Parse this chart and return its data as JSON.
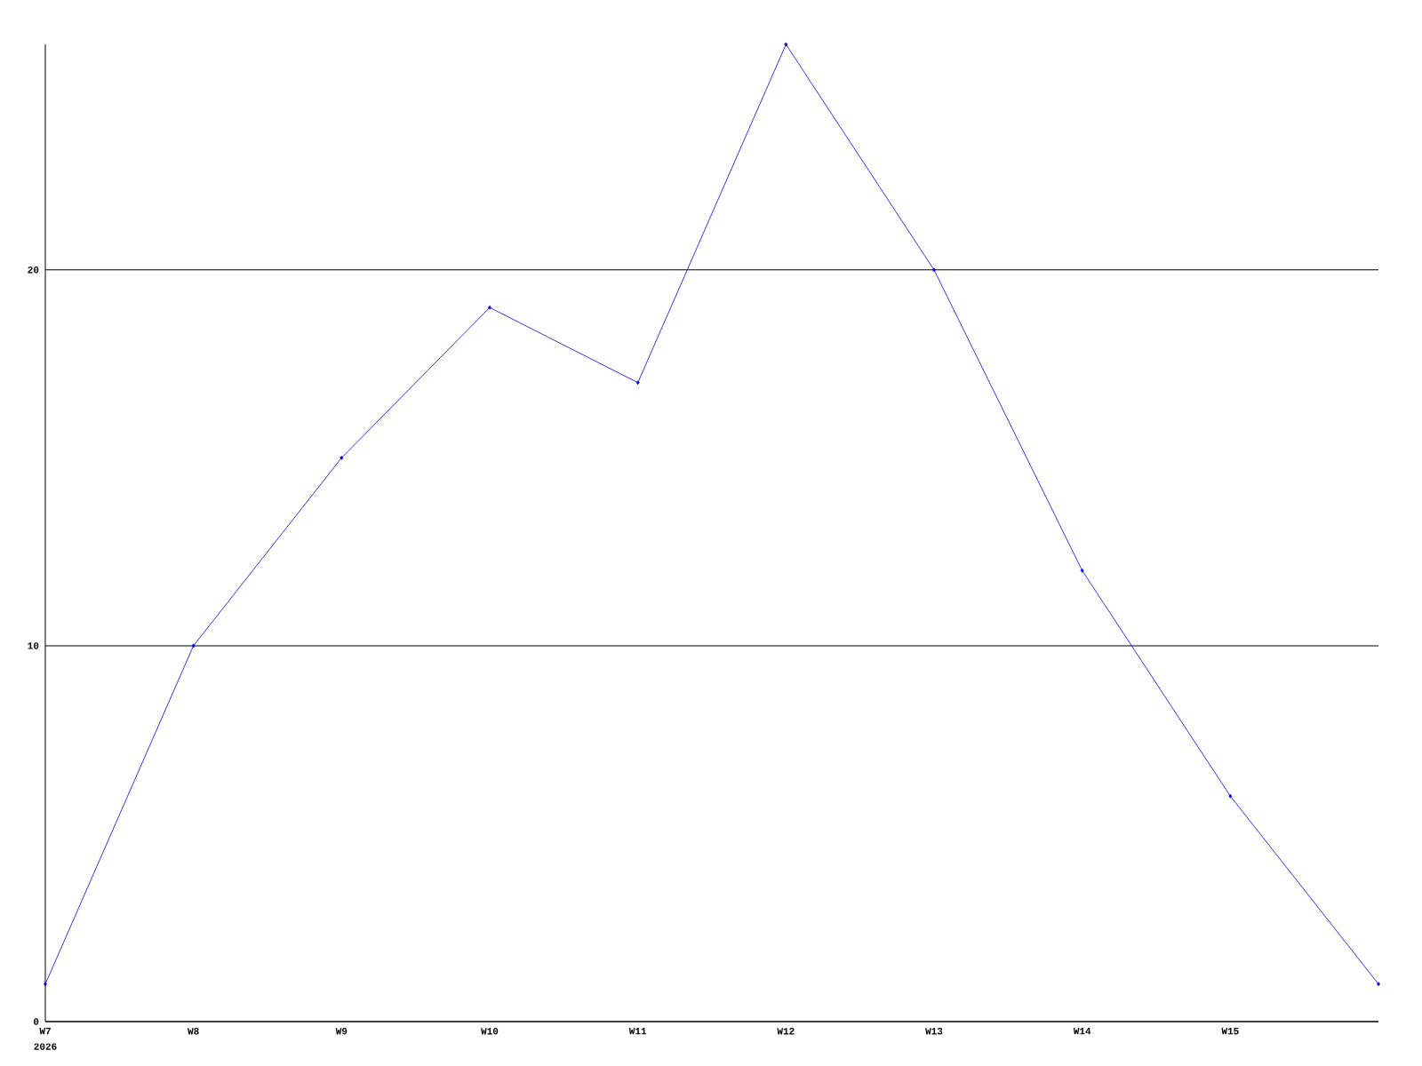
{
  "chart_data": {
    "type": "line",
    "categories": [
      "W7",
      "W8",
      "W9",
      "W10",
      "W11",
      "W12",
      "W13",
      "W14",
      "W15",
      null
    ],
    "values": [
      1,
      10,
      15,
      19,
      17,
      26,
      20,
      12,
      6,
      1
    ],
    "color": "#0000ff",
    "ylim": [
      0,
      26
    ],
    "yticks": [
      0,
      10,
      20
    ],
    "grid": "y",
    "marker": "diamond",
    "annotations": [
      "2026"
    ]
  }
}
